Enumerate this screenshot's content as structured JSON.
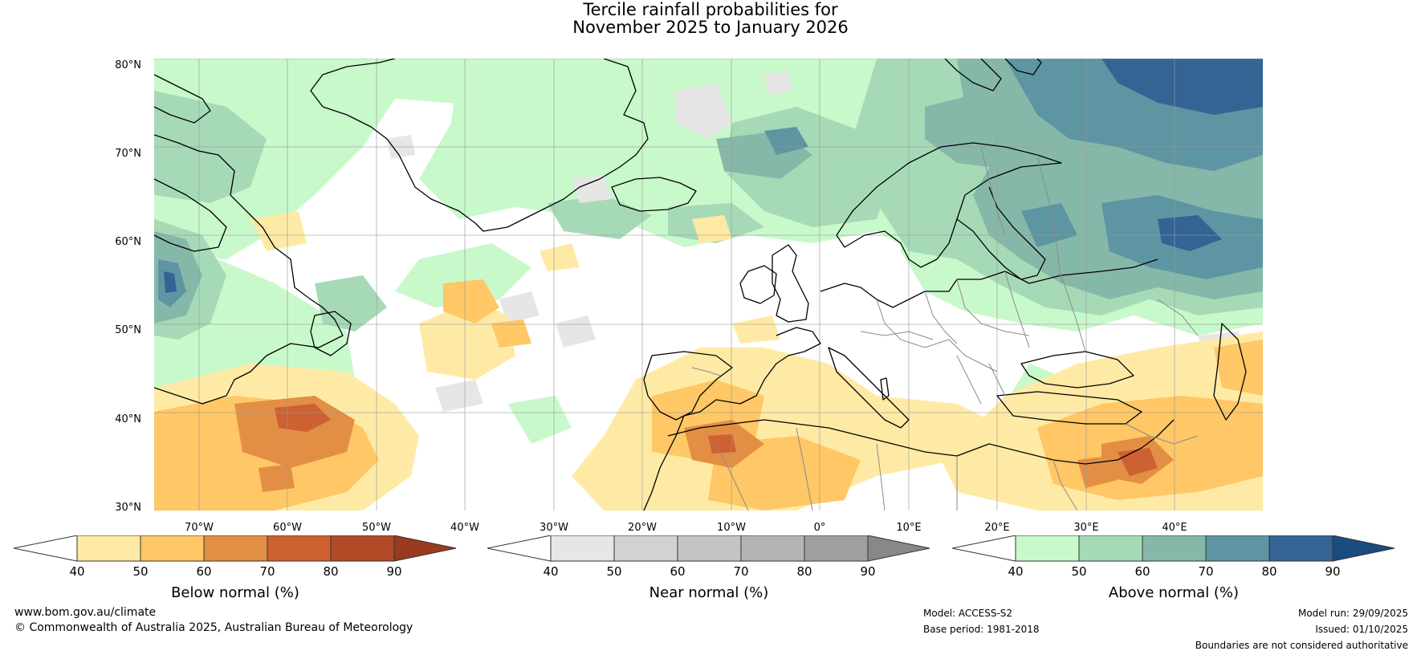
{
  "title": {
    "line1": "Tercile rainfall probabilities for",
    "line2": "November 2025 to January 2026"
  },
  "axes": {
    "latitudes": [
      "80°N",
      "70°N",
      "60°N",
      "50°N",
      "40°N",
      "30°N"
    ],
    "longitudes": [
      "70°W",
      "60°W",
      "50°W",
      "40°W",
      "30°W",
      "20°W",
      "10°W",
      "0°",
      "10°E",
      "20°E",
      "30°E",
      "40°E"
    ]
  },
  "colorbars": {
    "below": {
      "label": "Below normal (%)",
      "ticks": [
        "40",
        "50",
        "60",
        "70",
        "80",
        "90"
      ],
      "colors": [
        "#ffffff",
        "#ffeaa5",
        "#ffc765",
        "#e28f45",
        "#cd6131",
        "#b14b27",
        "#9a3a1e"
      ]
    },
    "near": {
      "label": "Near normal (%)",
      "ticks": [
        "40",
        "50",
        "60",
        "70",
        "80",
        "90"
      ],
      "colors": [
        "#ffffff",
        "#e6e6e6",
        "#d2d2d2",
        "#c4c4c4",
        "#b4b4b4",
        "#a0a0a0",
        "#888888"
      ]
    },
    "above": {
      "label": "Above normal (%)",
      "ticks": [
        "40",
        "50",
        "60",
        "70",
        "80",
        "90"
      ],
      "colors": [
        "#ffffff",
        "#c8f9cb",
        "#a6dab7",
        "#86b8a9",
        "#5e95a2",
        "#336494",
        "#1a4c7f"
      ]
    }
  },
  "footer": {
    "website": "www.bom.gov.au/climate",
    "copyright": "© Commonwealth of Australia 2025, Australian Bureau of Meteorology",
    "model": "Model: ACCESS-S2",
    "base_period": "Base period: 1981-2018",
    "model_run": "Model run: 29/09/2025",
    "issued": "Issued: 01/10/2025",
    "disclaimer": "Boundaries are not considered authoritative"
  }
}
